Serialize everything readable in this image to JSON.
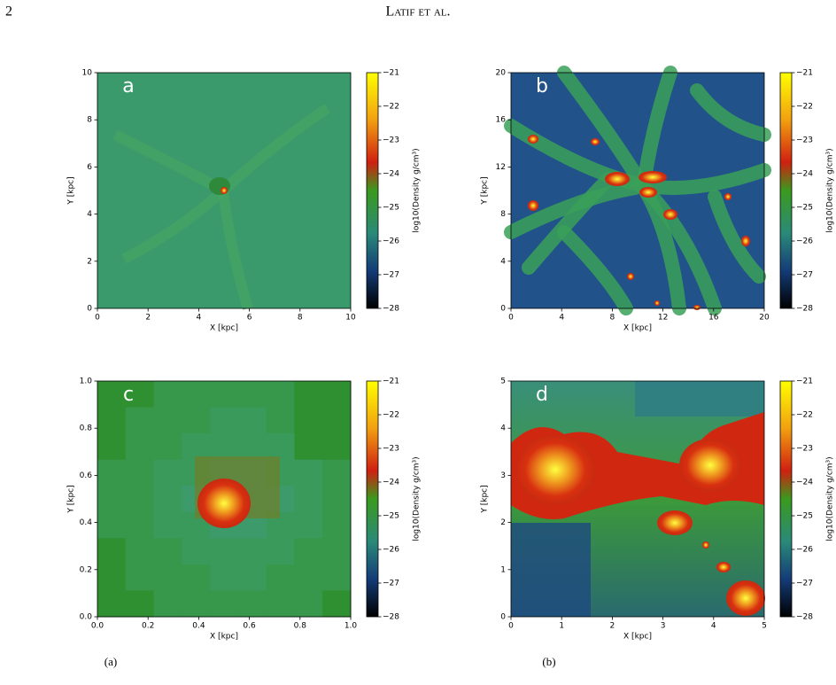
{
  "header": {
    "page_number": "2",
    "running_head": "Latif et al."
  },
  "panels": [
    {
      "label": "a",
      "x_label": "X [kpc]",
      "y_label": "Y [kpc]",
      "xticks": [
        "0",
        "2",
        "4",
        "6",
        "8",
        "10"
      ],
      "yticks": [
        "0",
        "2",
        "4",
        "6",
        "8",
        "10"
      ]
    },
    {
      "label": "b",
      "x_label": "X [kpc]",
      "y_label": "Y [kpc]",
      "xticks": [
        "0",
        "4",
        "8",
        "12",
        "16",
        "20"
      ],
      "yticks": [
        "0",
        "4",
        "8",
        "12",
        "16",
        "20"
      ]
    },
    {
      "label": "c",
      "x_label": "X [kpc]",
      "y_label": "Y [kpc]",
      "xticks": [
        "0.0",
        "0.2",
        "0.4",
        "0.6",
        "0.8",
        "1.0"
      ],
      "yticks": [
        "0.0",
        "0.2",
        "0.4",
        "0.6",
        "0.8",
        "1.0"
      ]
    },
    {
      "label": "d",
      "x_label": "X [kpc]",
      "y_label": "Y [kpc]",
      "xticks": [
        "0",
        "1",
        "2",
        "3",
        "4",
        "5"
      ],
      "yticks": [
        "0",
        "1",
        "2",
        "3",
        "4",
        "5"
      ]
    }
  ],
  "colorbar": {
    "label": "log10(Density g/cm³)",
    "ticks": [
      "−21",
      "−22",
      "−23",
      "−24",
      "−25",
      "−26",
      "−27",
      "−28"
    ]
  },
  "captions": [
    "(a)",
    "(b)"
  ]
}
